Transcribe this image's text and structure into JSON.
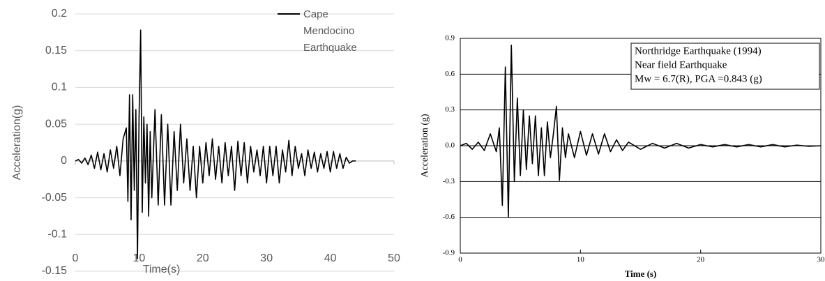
{
  "chart_data": [
    {
      "type": "line",
      "xlabel": "Time(s)",
      "ylabel": "Acceleration(g)",
      "xlim": [
        0,
        50
      ],
      "xticks": [
        0,
        10,
        20,
        30,
        40,
        50
      ],
      "ylim": [
        -0.15,
        0.2
      ],
      "yticks": [
        0.2,
        0.15,
        0.1,
        0.05,
        0,
        -0.05,
        -0.1,
        -0.15
      ],
      "grid": true,
      "x": [
        0,
        0.5,
        1,
        1.5,
        2,
        2.5,
        3,
        3.5,
        4,
        4.5,
        5,
        5.5,
        6,
        6.5,
        7,
        7.5,
        8,
        8.25,
        8.5,
        8.75,
        9,
        9.25,
        9.5,
        9.75,
        10,
        10.25,
        10.5,
        10.75,
        11,
        11.25,
        11.5,
        11.75,
        12,
        12.5,
        13,
        13.5,
        14,
        14.5,
        15,
        15.5,
        16,
        16.5,
        17,
        17.5,
        18,
        18.5,
        19,
        19.5,
        20,
        20.5,
        21,
        21.5,
        22,
        22.5,
        23,
        23.5,
        24,
        24.5,
        25,
        25.5,
        26,
        26.5,
        27,
        27.5,
        28,
        28.5,
        29,
        29.5,
        30,
        30.5,
        31,
        31.5,
        32,
        32.5,
        33,
        33.5,
        34,
        34.5,
        35,
        35.5,
        36,
        36.5,
        37,
        37.5,
        38,
        38.5,
        39,
        39.5,
        40,
        40.5,
        41,
        41.5,
        42,
        42.5,
        43,
        43.5,
        44
      ],
      "series": [
        {
          "name": "Cape Mendocino Earthquake",
          "color": "#000000",
          "values": [
            0,
            0.002,
            -0.003,
            0.004,
            -0.005,
            0.008,
            -0.01,
            0.012,
            -0.012,
            0.01,
            -0.015,
            0.015,
            -0.01,
            0.02,
            -0.02,
            0.03,
            0.045,
            -0.055,
            0.09,
            -0.08,
            0.09,
            -0.04,
            0.07,
            -0.133,
            0.06,
            0.178,
            -0.07,
            0.06,
            -0.03,
            0.05,
            -0.075,
            0.04,
            -0.05,
            0.07,
            -0.06,
            0.063,
            -0.06,
            0.05,
            -0.06,
            0.04,
            -0.04,
            0.05,
            -0.03,
            0.03,
            -0.04,
            0.02,
            -0.05,
            0.02,
            -0.03,
            0.025,
            -0.02,
            0.03,
            -0.025,
            0.02,
            -0.03,
            0.025,
            -0.02,
            0.02,
            -0.04,
            0.027,
            -0.02,
            0.025,
            -0.03,
            0.02,
            -0.015,
            0.015,
            -0.02,
            0.02,
            -0.03,
            0.02,
            -0.02,
            0.02,
            -0.03,
            0.015,
            -0.015,
            0.028,
            -0.02,
            0.02,
            -0.01,
            0.01,
            -0.02,
            0.015,
            -0.01,
            0.012,
            -0.015,
            0.01,
            -0.01,
            0.013,
            -0.015,
            0.013,
            -0.01,
            0.01,
            -0.01,
            0.005,
            -0.003,
            0,
            0
          ]
        }
      ]
    },
    {
      "type": "line",
      "xlabel": "Time (s)",
      "ylabel": "Acceleration (g)",
      "xlim": [
        0,
        30
      ],
      "xticks": [
        0,
        10,
        20,
        30
      ],
      "ylim": [
        -0.9,
        0.9
      ],
      "yticks": [
        0.9,
        0.6,
        0.3,
        {
          "value": 0,
          "label": "0.0"
        },
        -0.3,
        -0.6,
        -0.9
      ],
      "grid": true,
      "annotations": [
        "Northridge Earthquake (1994)",
        "Near field Earthquake",
        "Mw = 6.7(R), PGA =0.843 (g)"
      ],
      "x": [
        0,
        0.5,
        1,
        1.5,
        2,
        2.5,
        3,
        3.25,
        3.5,
        3.75,
        4,
        4.25,
        4.5,
        4.75,
        5,
        5.25,
        5.5,
        5.75,
        6,
        6.25,
        6.5,
        6.75,
        7,
        7.25,
        7.5,
        7.75,
        8,
        8.25,
        8.5,
        8.75,
        9,
        9.5,
        10,
        10.5,
        11,
        11.5,
        12,
        12.5,
        13,
        13.5,
        14,
        15,
        16,
        17,
        18,
        19,
        20,
        21,
        22,
        23,
        24,
        25,
        26,
        27,
        28,
        29,
        30
      ],
      "color": "#000000",
      "values": [
        0,
        0.02,
        -0.03,
        0.03,
        -0.04,
        0.1,
        -0.05,
        0.15,
        -0.5,
        0.66,
        -0.6,
        0.843,
        -0.3,
        0.4,
        -0.25,
        0.3,
        -0.2,
        0.25,
        -0.15,
        0.25,
        -0.25,
        0.15,
        -0.25,
        0.2,
        -0.1,
        0.1,
        0.33,
        -0.29,
        0.15,
        -0.1,
        0.1,
        -0.1,
        0.12,
        -0.08,
        0.1,
        -0.07,
        0.1,
        -0.05,
        0.05,
        -0.04,
        0.03,
        -0.03,
        0.02,
        -0.02,
        0.02,
        -0.02,
        0.01,
        -0.01,
        0.01,
        -0.01,
        0.01,
        -0.01,
        0.01,
        -0.01,
        0.005,
        -0.005,
        0
      ]
    }
  ]
}
